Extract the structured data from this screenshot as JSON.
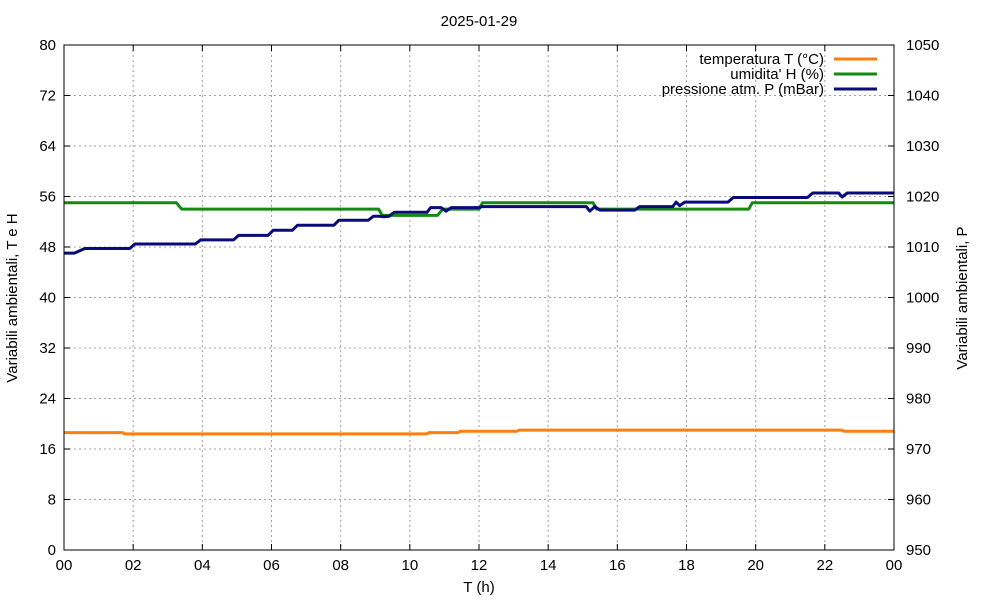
{
  "chart_data": {
    "type": "line",
    "title": "2025-01-29",
    "xlabel": "T (h)",
    "ylabel": "Variabili ambientali, T e H",
    "y2label": "Variabili ambientali, P",
    "xlim": [
      0,
      24
    ],
    "ylim": [
      0,
      80
    ],
    "y2lim": [
      950,
      1050
    ],
    "grid": true,
    "legend_position": "top-right",
    "xticks": [
      "00",
      "02",
      "04",
      "06",
      "08",
      "10",
      "12",
      "14",
      "16",
      "18",
      "20",
      "22",
      "00"
    ],
    "yticks": [
      "0",
      "8",
      "16",
      "24",
      "32",
      "40",
      "48",
      "56",
      "64",
      "72",
      "80"
    ],
    "y2ticks": [
      "950",
      "960",
      "970",
      "980",
      "990",
      "1000",
      "1010",
      "1020",
      "1030",
      "1040",
      "1050"
    ],
    "series": [
      {
        "name": "temperatura T (°C)",
        "axis": "y",
        "color": "#ff7f0e",
        "points": [
          [
            0,
            18.6
          ],
          [
            1.7,
            18.6
          ],
          [
            1.75,
            18.4
          ],
          [
            10.5,
            18.4
          ],
          [
            10.55,
            18.6
          ],
          [
            11.4,
            18.6
          ],
          [
            11.45,
            18.8
          ],
          [
            13.1,
            18.8
          ],
          [
            13.15,
            19.0
          ],
          [
            22.5,
            19.0
          ],
          [
            22.55,
            18.8
          ],
          [
            24,
            18.8
          ]
        ]
      },
      {
        "name": "umidita' H (%)",
        "axis": "y",
        "color": "#138a13",
        "points": [
          [
            0,
            55
          ],
          [
            3.25,
            55
          ],
          [
            3.4,
            54
          ],
          [
            9.1,
            54
          ],
          [
            9.2,
            53
          ],
          [
            10.8,
            53
          ],
          [
            10.95,
            54
          ],
          [
            12.0,
            54
          ],
          [
            12.1,
            55
          ],
          [
            15.3,
            55
          ],
          [
            15.4,
            54
          ],
          [
            19.8,
            54
          ],
          [
            19.9,
            55
          ],
          [
            24,
            55
          ]
        ]
      },
      {
        "name": "pressione atm. P (mBar)",
        "axis": "y2",
        "color": "#0a0a7a",
        "points": [
          [
            0,
            1008.8
          ],
          [
            0.3,
            1008.8
          ],
          [
            0.6,
            1009.7
          ],
          [
            1.9,
            1009.7
          ],
          [
            2.05,
            1010.6
          ],
          [
            3.8,
            1010.6
          ],
          [
            3.95,
            1011.4
          ],
          [
            4.9,
            1011.4
          ],
          [
            5.05,
            1012.3
          ],
          [
            5.9,
            1012.3
          ],
          [
            6.05,
            1013.3
          ],
          [
            6.6,
            1013.3
          ],
          [
            6.75,
            1014.3
          ],
          [
            7.8,
            1014.3
          ],
          [
            7.95,
            1015.3
          ],
          [
            8.8,
            1015.3
          ],
          [
            8.95,
            1016.1
          ],
          [
            9.1,
            1016.1
          ],
          [
            9.25,
            1016.0
          ],
          [
            9.4,
            1016.1
          ],
          [
            9.55,
            1016.9
          ],
          [
            10.5,
            1016.9
          ],
          [
            10.6,
            1017.8
          ],
          [
            10.9,
            1017.8
          ],
          [
            11.05,
            1017.1
          ],
          [
            11.2,
            1017.8
          ],
          [
            12.0,
            1017.8
          ],
          [
            12.1,
            1018.0
          ],
          [
            15.1,
            1018.0
          ],
          [
            15.2,
            1017.1
          ],
          [
            15.35,
            1018.0
          ],
          [
            15.5,
            1017.3
          ],
          [
            16.5,
            1017.3
          ],
          [
            16.65,
            1018.0
          ],
          [
            17.6,
            1018.0
          ],
          [
            17.7,
            1018.9
          ],
          [
            17.8,
            1018.2
          ],
          [
            17.95,
            1018.9
          ],
          [
            19.2,
            1018.9
          ],
          [
            19.35,
            1019.8
          ],
          [
            21.5,
            1019.8
          ],
          [
            21.65,
            1020.7
          ],
          [
            22.4,
            1020.7
          ],
          [
            22.5,
            1019.9
          ],
          [
            22.65,
            1020.7
          ],
          [
            24,
            1020.7
          ]
        ]
      }
    ]
  }
}
